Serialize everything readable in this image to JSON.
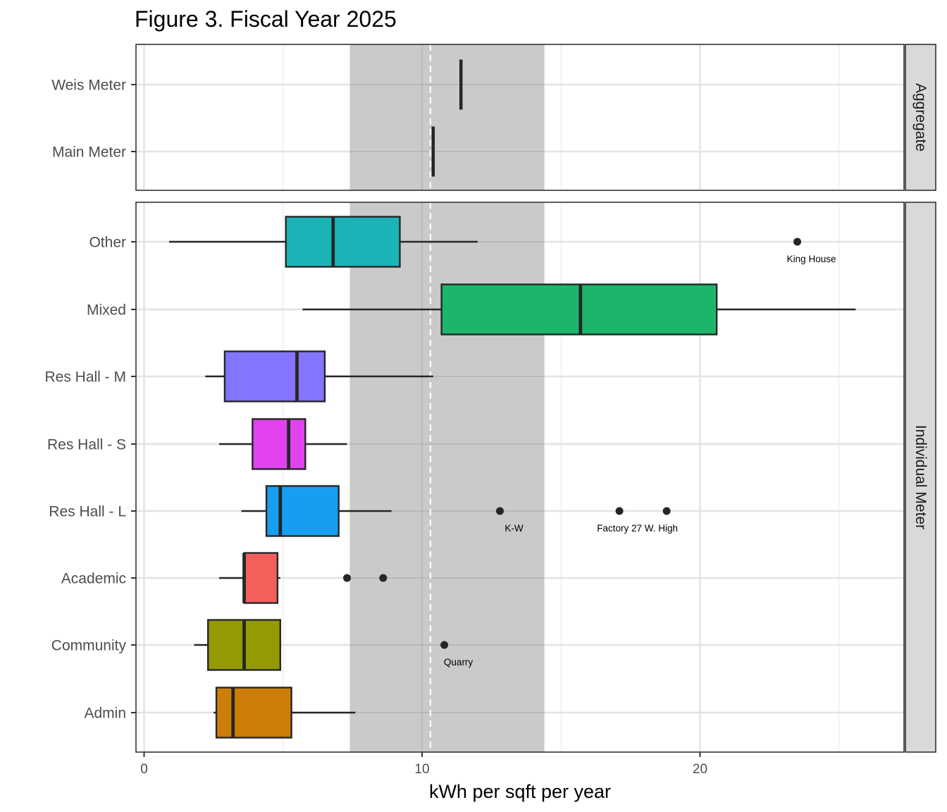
{
  "chart_data": {
    "type": "boxplot",
    "title": "Figure 3. Fiscal Year 2025",
    "xlabel": "kWh per sqft per year",
    "ylabel": "",
    "xlim": [
      -0.3,
      27.4
    ],
    "x_ticks": [
      0,
      10,
      20
    ],
    "x_minor_ticks": [
      5,
      15,
      25
    ],
    "reference_band": {
      "min": 7.4,
      "max": 14.4,
      "color": "#c8c8c8"
    },
    "reference_line": {
      "value": 10.3,
      "style": "dashed",
      "color": "#ffffff"
    },
    "facets": [
      {
        "name": "Aggregate",
        "categories": [
          "Main Meter",
          "Weis Meter"
        ],
        "series": [
          {
            "category": "Weis Meter",
            "q1": 11.4,
            "median": 11.4,
            "q3": 11.4,
            "whisker_low": 11.4,
            "whisker_high": 11.4,
            "color": "#f8766d",
            "outliers": []
          },
          {
            "category": "Main Meter",
            "q1": 10.4,
            "median": 10.4,
            "q3": 10.4,
            "whisker_low": 10.4,
            "whisker_high": 10.4,
            "color": "#f8766d",
            "outliers": []
          }
        ]
      },
      {
        "name": "Individual Meter",
        "categories": [
          "Admin",
          "Community",
          "Academic",
          "Res Hall - L",
          "Res Hall - S",
          "Res Hall - M",
          "Mixed",
          "Other"
        ],
        "series": [
          {
            "category": "Other",
            "q1": 5.1,
            "median": 6.8,
            "q3": 9.2,
            "whisker_low": 0.9,
            "whisker_high": 12.0,
            "color": "#19b3b8",
            "outliers": [
              {
                "value": 23.5,
                "label": "King House"
              }
            ]
          },
          {
            "category": "Mixed",
            "q1": 10.7,
            "median": 15.7,
            "q3": 20.6,
            "whisker_low": 5.7,
            "whisker_high": 25.6,
            "color": "#1bb66b",
            "outliers": []
          },
          {
            "category": "Res Hall - M",
            "q1": 2.9,
            "median": 5.5,
            "q3": 6.5,
            "whisker_low": 2.2,
            "whisker_high": 10.4,
            "color": "#8475ff",
            "outliers": []
          },
          {
            "category": "Res Hall - S",
            "q1": 3.9,
            "median": 5.2,
            "q3": 5.8,
            "whisker_low": 2.7,
            "whisker_high": 7.3,
            "color": "#e043ee",
            "outliers": []
          },
          {
            "category": "Res Hall - L",
            "q1": 4.4,
            "median": 4.9,
            "q3": 7.0,
            "whisker_low": 3.5,
            "whisker_high": 8.9,
            "color": "#169ff1",
            "outliers": [
              {
                "value": 12.8,
                "label": "K-W"
              },
              {
                "value": 17.1,
                "label": ""
              },
              {
                "value": 18.8,
                "label": ""
              }
            ],
            "outlier_group_label": "Factory 27 W. High"
          },
          {
            "category": "Academic",
            "q1": 3.6,
            "median": 3.6,
            "q3": 4.8,
            "whisker_low": 2.7,
            "whisker_high": 4.9,
            "color": "#f45f5c",
            "outliers": [
              {
                "value": 7.3,
                "label": ""
              },
              {
                "value": 8.6,
                "label": ""
              }
            ]
          },
          {
            "category": "Community",
            "q1": 2.3,
            "median": 3.6,
            "q3": 4.9,
            "whisker_low": 1.8,
            "whisker_high": 4.9,
            "color": "#949a02",
            "outliers": [
              {
                "value": 10.8,
                "label": "Quarry"
              }
            ]
          },
          {
            "category": "Admin",
            "q1": 2.6,
            "median": 3.2,
            "q3": 5.3,
            "whisker_low": 2.5,
            "whisker_high": 7.6,
            "color": "#cd7e08",
            "outliers": []
          }
        ]
      }
    ],
    "grid": true,
    "legend": "none"
  }
}
